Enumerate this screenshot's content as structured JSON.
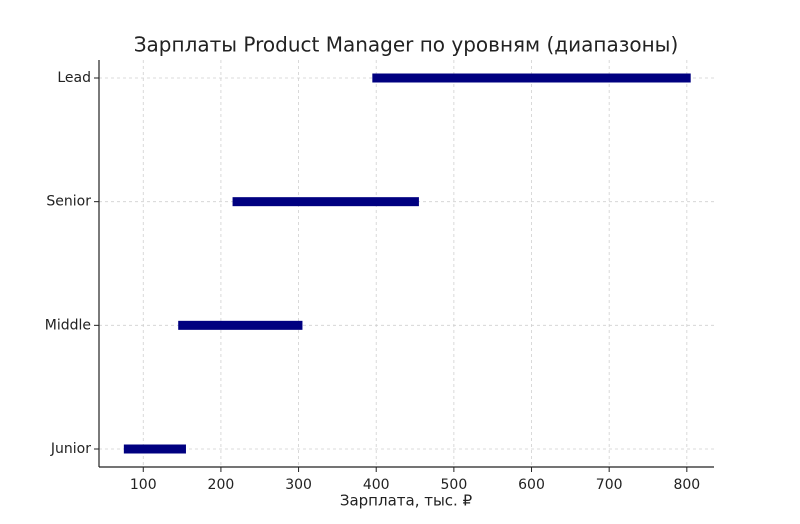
{
  "chart_data": {
    "type": "range-bar",
    "title": "Зарплаты Product Manager по уровням (диапазоны)",
    "x_label": "Зарплата, тыс. ₽",
    "categories": [
      "Junior",
      "Middle",
      "Senior",
      "Lead"
    ],
    "starts": [
      75,
      145,
      215,
      395
    ],
    "ends": [
      155,
      305,
      455,
      805
    ],
    "color": "#000080",
    "xlim": [
      43,
      835
    ],
    "xticks": [
      100,
      200,
      300,
      400,
      500,
      600,
      700,
      800
    ],
    "grid": true
  }
}
